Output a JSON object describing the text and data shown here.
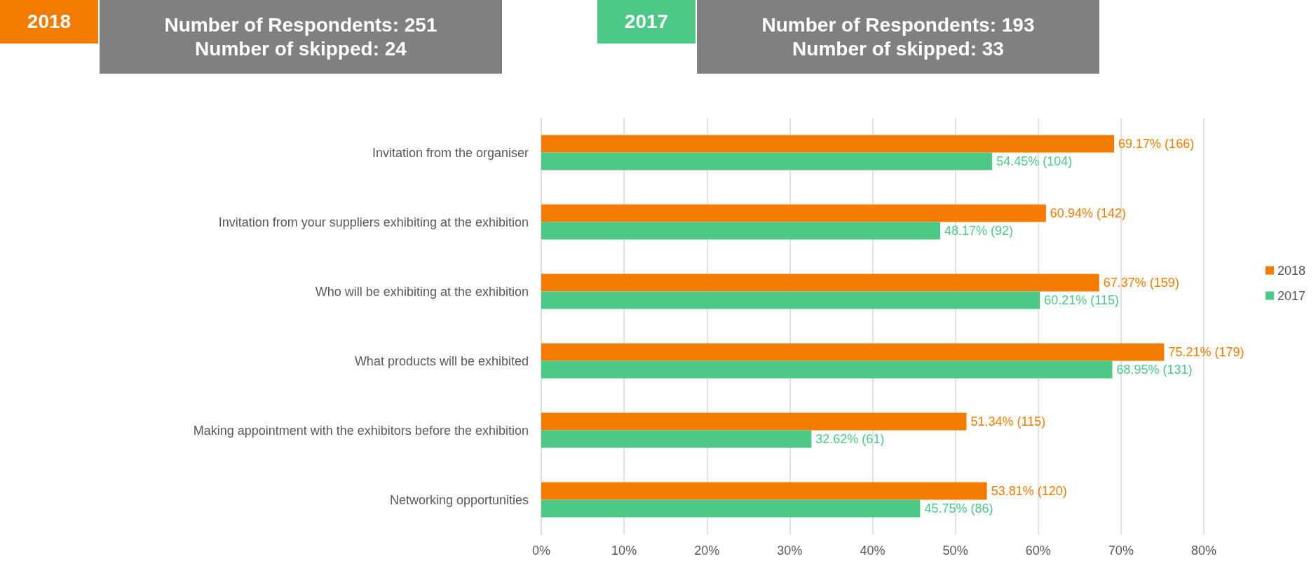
{
  "chart_data": {
    "type": "bar",
    "orientation": "horizontal",
    "categories": [
      "Invitation from the organiser",
      "Invitation from your suppliers exhibiting at the exhibition",
      "Who will be exhibiting at the exhibition",
      "What products will be exhibited",
      "Making appointment with the exhibitors before the exhibition",
      "Networking opportunities"
    ],
    "series": [
      {
        "name": "2018",
        "color": "#f27b00",
        "values": [
          69.17,
          60.94,
          67.37,
          75.21,
          51.34,
          53.81
        ],
        "value_labels": [
          "69.17% (166)",
          "60.94% (142)",
          "67.37% (159)",
          "75.21% (179)",
          "51.34% (115)",
          "53.81% (120)"
        ]
      },
      {
        "name": "2017",
        "color": "#4cc987",
        "values": [
          54.45,
          48.17,
          60.21,
          68.95,
          32.62,
          45.75
        ],
        "value_labels": [
          "54.45% (104)",
          "48.17% (92)",
          "60.21% (115)",
          "68.95% (131)",
          "32.62% (61)",
          "45.75% (86)"
        ]
      }
    ],
    "xlim": [
      0,
      80
    ],
    "xticks": [
      {
        "value": 0,
        "label": "0%"
      },
      {
        "value": 10,
        "label": "10%"
      },
      {
        "value": 20,
        "label": "20%"
      },
      {
        "value": 30,
        "label": "30%"
      },
      {
        "value": 40,
        "label": "40%"
      },
      {
        "value": 50,
        "label": "50%"
      },
      {
        "value": 60,
        "label": "60%"
      },
      {
        "value": 70,
        "label": "70%"
      },
      {
        "value": 80,
        "label": "80%"
      }
    ],
    "grid": "x",
    "legend": "right",
    "annotations": [
      "2018",
      "Number of Respondents: 251\nNumber of skipped: 24",
      "2017",
      "Number of Respondents: 193\nNumber of skipped: 33"
    ]
  }
}
